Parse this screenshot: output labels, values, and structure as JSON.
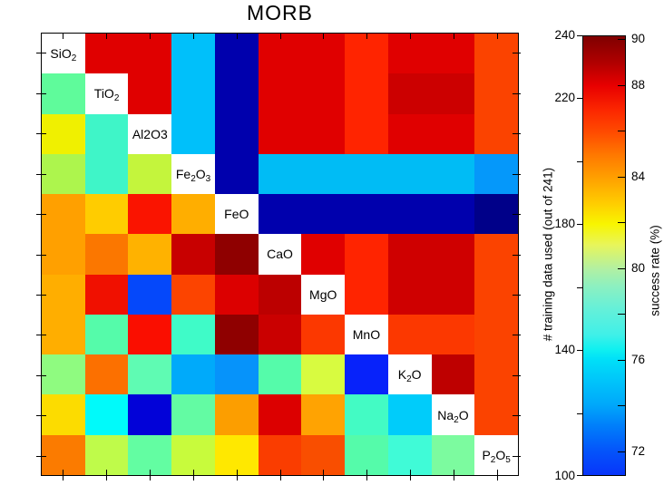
{
  "title": "MORB",
  "heatmap": {
    "row_labels": [
      "SiO_2",
      "TiO_2",
      "Al2O3",
      "Fe_2O_3",
      "FeO",
      "CaO",
      "MgO",
      "MnO",
      "K_2O",
      "Na_2O",
      "P_2O_5"
    ],
    "cell_colors": [
      [
        null,
        "#E00000",
        "#E00000",
        "#00C0FA",
        "#0000AD",
        "#E00000",
        "#E00000",
        "#FF2400",
        "#E00000",
        "#E00000",
        "#FB4300"
      ],
      [
        "#5FFB9B",
        null,
        "#E00000",
        "#00C0FA",
        "#0000AD",
        "#E00000",
        "#E00000",
        "#FF2400",
        "#CC0000",
        "#CC0000",
        "#FB4300"
      ],
      [
        "#F0F000",
        "#3FF5C8",
        null,
        "#00C0FA",
        "#0000AD",
        "#E00000",
        "#E00000",
        "#FF2400",
        "#E00000",
        "#E00000",
        "#FB4300"
      ],
      [
        "#ADF54D",
        "#3FF5C8",
        "#C4F53C",
        null,
        "#0000AD",
        "#00BCF5",
        "#00BCF5",
        "#00BCF5",
        "#00BCF5",
        "#00BCF5",
        "#0598FA"
      ],
      [
        "#FFA000",
        "#FFCC00",
        "#FA1400",
        "#FFAE00",
        null,
        "#0000AD",
        "#0000AD",
        "#0000AD",
        "#0000AD",
        "#0000AD",
        "#000089"
      ],
      [
        "#FFA000",
        "#FB7700",
        "#FFB200",
        "#C80000",
        "#8F0000",
        null,
        "#E00000",
        "#FF2400",
        "#CF0000",
        "#CF0000",
        "#FB4300"
      ],
      [
        "#FFAE00",
        "#F01000",
        "#0548FA",
        "#FC4400",
        "#DC0000",
        "#BC0000",
        null,
        "#FF2400",
        "#CF0000",
        "#CF0000",
        "#FB4300"
      ],
      [
        "#FFAE00",
        "#55FBAA",
        "#FA0E00",
        "#3FFBC8",
        "#8F0000",
        "#CA0000",
        "#FC3800",
        null,
        "#FC3800",
        "#FC3800",
        "#FB4300"
      ],
      [
        "#8FFB80",
        "#FC7000",
        "#5FFBB3",
        "#00AAFA",
        "#0693FA",
        "#55FBAA",
        "#D8FB40",
        "#0722FA",
        null,
        "#BE0000",
        "#FB4300"
      ],
      [
        "#FCDC00",
        "#00FAFA",
        "#0202D8",
        "#63FBA3",
        "#FC9E00",
        "#DC0000",
        "#FFA302",
        "#43FBC4",
        "#00CCFA",
        null,
        "#FB4300"
      ],
      [
        "#FB7B00",
        "#BFFB4A",
        "#63FDA2",
        "#C8FB3C",
        "#FFE800",
        "#FA3D00",
        "#F94E00",
        "#55FBAA",
        "#40FBD7",
        "#7CFB9F",
        null
      ]
    ]
  },
  "colorbar": {
    "left_axis": {
      "title": "# training data used (out of 241)",
      "min": 100,
      "max": 240,
      "ticks": [
        240,
        220,
        200,
        180,
        160,
        140,
        120,
        100
      ],
      "labeled": [
        240,
        220,
        180,
        140,
        100
      ]
    },
    "right_axis": {
      "title": "success rate (%)",
      "ticks": [
        90,
        88,
        86,
        84,
        82,
        80,
        78,
        76,
        74,
        72
      ],
      "labeled": [
        90,
        88,
        84,
        80,
        76,
        72
      ]
    },
    "colormap_stops": [
      [
        "0%",
        "#7F0000"
      ],
      [
        "6%",
        "#B00000"
      ],
      [
        "11.3%",
        "#E80000"
      ],
      [
        "17%",
        "#FC2800"
      ],
      [
        "22%",
        "#FF4C00"
      ],
      [
        "27%",
        "#FF7800"
      ],
      [
        "32.3%",
        "#FFA000"
      ],
      [
        "38%",
        "#FFCC00"
      ],
      [
        "42.8%",
        "#F8F500"
      ],
      [
        "47.5%",
        "#E8F55A"
      ],
      [
        "53%",
        "#B2F0A2"
      ],
      [
        "57%",
        "#8CF0C0"
      ],
      [
        "62%",
        "#66F0D8"
      ],
      [
        "68%",
        "#40F0E8"
      ],
      [
        "71.4%",
        "#0FF0F0"
      ],
      [
        "73.6%",
        "#00E0F8"
      ],
      [
        "79.4%",
        "#00C0FA"
      ],
      [
        "84%",
        "#00A8FA"
      ],
      [
        "88.6%",
        "#0080FA"
      ],
      [
        "94.4%",
        "#0455FA"
      ],
      [
        "100%",
        "#0835FA"
      ]
    ]
  },
  "chart_data": {
    "type": "heatmap",
    "title": "MORB",
    "categories": [
      "SiO2",
      "TiO2",
      "Al2O3",
      "Fe2O3",
      "FeO",
      "CaO",
      "MgO",
      "MnO",
      "K2O",
      "Na2O",
      "P2O5"
    ],
    "colorbar_left_label": "# training data used (out of 241)",
    "colorbar_left_range": [
      100,
      240
    ],
    "colorbar_left_ticks_labeled": [
      100,
      140,
      180,
      220,
      240
    ],
    "colorbar_right_label": "success rate (%)",
    "colorbar_right_range": [
      72,
      90
    ],
    "colorbar_right_ticks_labeled": [
      72,
      76,
      80,
      84,
      88,
      90
    ],
    "success_rate_estimated": [
      [
        null,
        88.0,
        88.0,
        75.4,
        69.5,
        88.0,
        88.0,
        86.4,
        88.0,
        88.0,
        86.1
      ],
      [
        78.2,
        null,
        88.0,
        75.4,
        69.5,
        88.0,
        88.0,
        86.4,
        88.6,
        88.6,
        86.1
      ],
      [
        82.1,
        77.4,
        null,
        75.4,
        69.5,
        88.0,
        88.0,
        86.4,
        88.0,
        88.0,
        86.1
      ],
      [
        80.7,
        77.4,
        80.9,
        null,
        69.5,
        75.5,
        75.5,
        75.5,
        75.5,
        75.5,
        74.5
      ],
      [
        83.9,
        82.9,
        87.5,
        83.7,
        null,
        69.5,
        69.5,
        69.5,
        69.5,
        69.5,
        68.6
      ],
      [
        83.9,
        84.7,
        83.6,
        88.7,
        89.8,
        null,
        88.0,
        86.4,
        88.5,
        88.5,
        86.1
      ],
      [
        83.7,
        87.6,
        72.3,
        86.0,
        88.1,
        89.0,
        null,
        86.4,
        88.5,
        88.5,
        86.1
      ],
      [
        83.7,
        77.8,
        87.7,
        77.4,
        89.8,
        88.6,
        86.2,
        null,
        86.2,
        86.2,
        86.1
      ],
      [
        78.6,
        84.9,
        77.9,
        74.9,
        74.4,
        77.8,
        81.1,
        72.2,
        null,
        88.9,
        86.1
      ],
      [
        82.9,
        76.3,
        70.6,
        78.1,
        84.0,
        88.1,
        83.8,
        77.5,
        75.7,
        null,
        86.1
      ],
      [
        84.7,
        80.7,
        78.1,
        80.9,
        82.5,
        86.2,
        85.9,
        77.8,
        77.3,
        78.4,
        null
      ]
    ]
  }
}
